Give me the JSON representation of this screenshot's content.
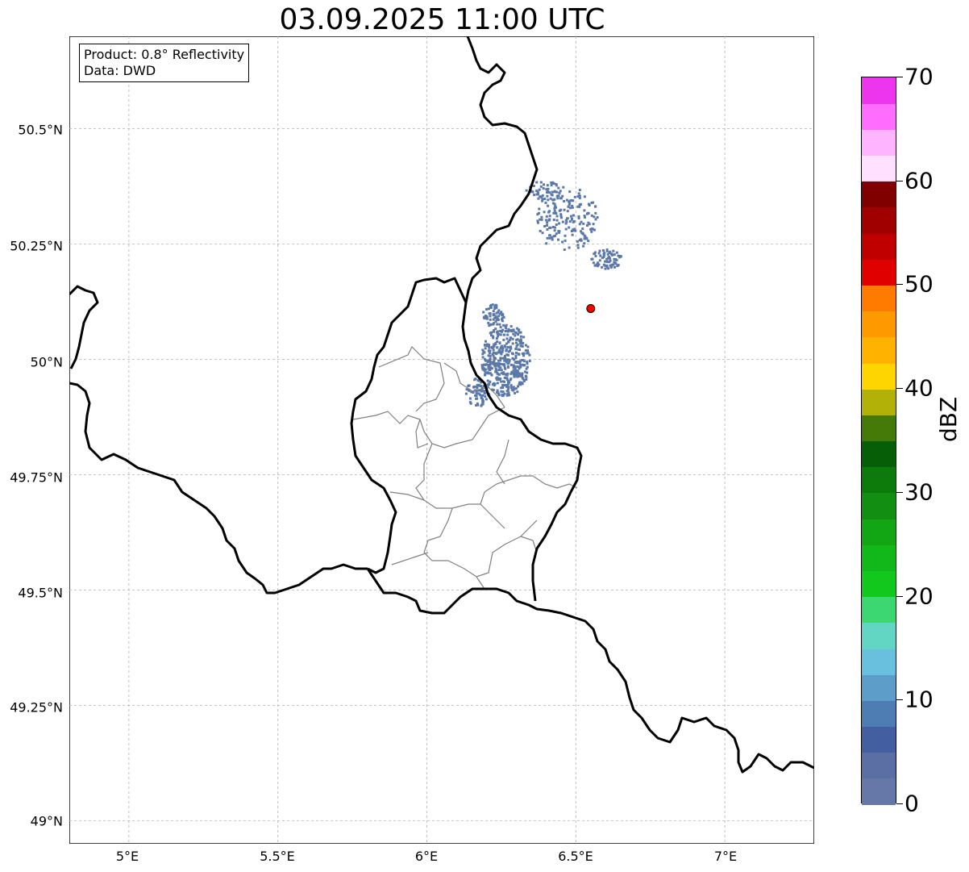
{
  "title": "03.09.2025 11:00 UTC",
  "info": {
    "product": "Product: 0.8° Reflectivity",
    "data": "Data: DWD"
  },
  "map": {
    "lon_range": [
      4.8,
      7.3
    ],
    "lat_range": [
      48.95,
      50.7
    ],
    "lat_ticks": [
      "50.5°N",
      "50.25°N",
      "50°N",
      "49.75°N",
      "49.5°N",
      "49.25°N",
      "49°N"
    ],
    "lon_ticks": [
      "5°E",
      "5.5°E",
      "6°E",
      "6.5°E",
      "7°E"
    ],
    "grid": true,
    "border_color": "#000000",
    "admin_border_color": "#808080",
    "radar_site": {
      "lon": 6.55,
      "lat": 50.11,
      "color": "#ff0000"
    },
    "echo_color": "#5a78a8"
  },
  "colorbar": {
    "unit": "dBZ",
    "min": 0,
    "max": 70,
    "labels": [
      "0",
      "10",
      "20",
      "30",
      "40",
      "50",
      "60",
      "70"
    ],
    "colors": [
      "#6678a8",
      "#5b6fa5",
      "#445fa0",
      "#4d7db3",
      "#5c9ec9",
      "#68c0de",
      "#62d6c3",
      "#3cd673",
      "#12c81c",
      "#12b81a",
      "#12a514",
      "#128e12",
      "#0c7b0c",
      "#065f06",
      "#467a08",
      "#b1b108",
      "#ffd500",
      "#ffb300",
      "#ff9900",
      "#ff7b00",
      "#e00000",
      "#c00000",
      "#a00000",
      "#800000",
      "#ffe0ff",
      "#ffb4ff",
      "#ff6dff",
      "#ee35ee"
    ]
  }
}
